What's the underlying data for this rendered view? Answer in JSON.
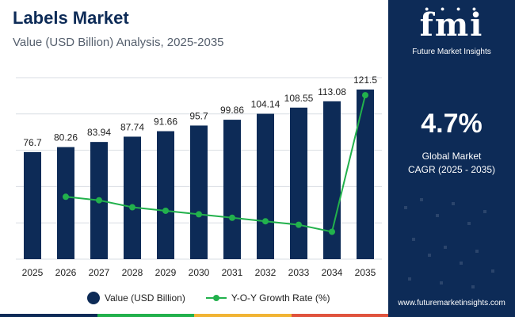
{
  "header": {
    "title": "Labels Market",
    "subtitle": "Value (USD Billion) Analysis, 2025-2035"
  },
  "chart_data": {
    "type": "bar",
    "categories": [
      "2025",
      "2026",
      "2027",
      "2028",
      "2029",
      "2030",
      "2031",
      "2032",
      "2033",
      "2034",
      "2035"
    ],
    "series": [
      {
        "name": "Value (USD Billion)",
        "type": "bar",
        "values": [
          76.7,
          80.26,
          83.94,
          87.74,
          91.66,
          95.7,
          99.86,
          104.14,
          108.55,
          113.08,
          121.5
        ],
        "labels": [
          "76.7",
          "80.26",
          "83.94",
          "87.74",
          "91.66",
          "95.7",
          "99.86",
          "104.14",
          "108.55",
          "113.08",
          "121.5"
        ]
      },
      {
        "name": "Y-O-Y Growth Rate (%)",
        "type": "line",
        "values": [
          null,
          4.6,
          4.5,
          4.3,
          4.2,
          4.1,
          4.0,
          3.9,
          3.8,
          3.6,
          7.5
        ]
      }
    ],
    "ylim": [
      0,
      130
    ],
    "y2lim": [
      3,
      8
    ],
    "grid": true,
    "legend_position": "bottom"
  },
  "legend": {
    "bar_label": "Value (USD Billion)",
    "line_label": "Y-O-Y Growth Rate (%)"
  },
  "side_panel": {
    "logo_text": "fmi",
    "logo_subtext": "Future Market Insights",
    "cagr_value": "4.7%",
    "cagr_label_line1": "Global Market",
    "cagr_label_line2": "CAGR (2025 - 2035)",
    "website": "www.futuremarketinsights.com"
  },
  "colors": {
    "bar": "#0d2b57",
    "line": "#22b14c",
    "panel": "#0d2b57",
    "grid": "#d9dde3",
    "bottom_bar": [
      "#0d2b57",
      "#22b14c",
      "#f1b434",
      "#e0533d"
    ]
  }
}
